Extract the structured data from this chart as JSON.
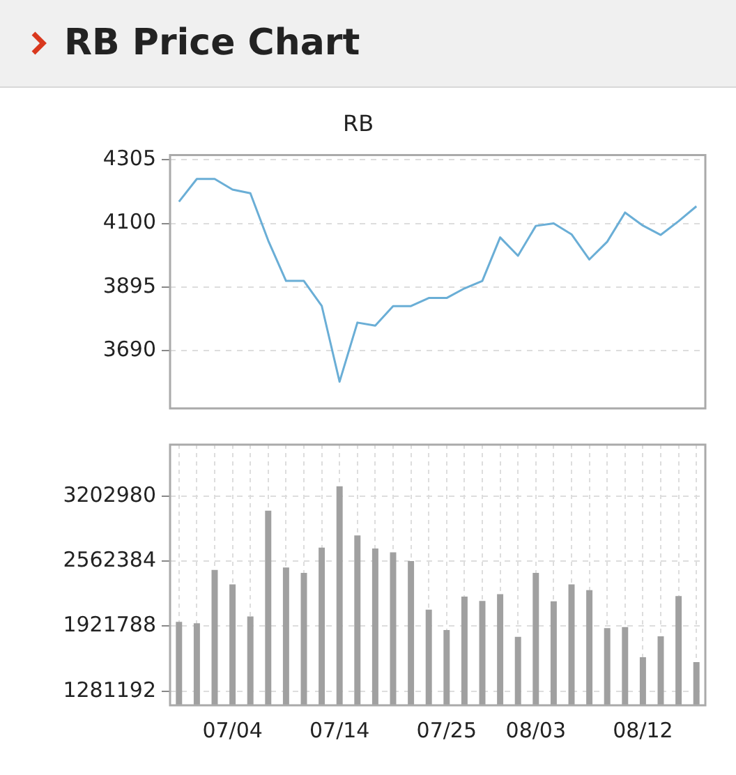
{
  "chart_data": [
    {
      "type": "line",
      "title": "RB Price Chart",
      "subtitle": "RB",
      "categories": [
        null,
        null,
        null,
        null,
        null,
        null,
        null,
        null,
        null,
        null,
        null,
        null,
        null,
        null,
        null,
        null,
        null,
        null,
        null,
        null,
        null,
        null,
        null,
        null,
        null,
        null,
        null,
        null,
        null,
        null
      ],
      "series": [
        {
          "color": "#6aaed6",
          "values": [
            4170,
            4243,
            4243,
            4209,
            4197,
            4045,
            3915,
            3915,
            3835,
            3591,
            3781,
            3771,
            3834,
            3834,
            3860,
            3860,
            3891,
            3915,
            4055,
            3996,
            4092,
            4100,
            4065,
            3984,
            4041,
            4135,
            4093,
            4063,
            4107,
            4155
          ]
        }
      ],
      "ylim": [
        3505,
        4320
      ],
      "yticks": [
        3690,
        3895,
        4100,
        4305
      ],
      "grid": "y",
      "tick_labels": "y"
    },
    {
      "type": "bar",
      "categories": [
        null,
        null,
        null,
        "07/04",
        null,
        null,
        null,
        null,
        null,
        "07/14",
        null,
        null,
        null,
        null,
        null,
        "07/25",
        null,
        null,
        null,
        null,
        "08/03",
        null,
        null,
        null,
        null,
        null,
        "08/12",
        null,
        null,
        null
      ],
      "series": [
        {
          "color": "#a0a0a0",
          "values": [
            1965000,
            1950000,
            2476000,
            2333000,
            2017000,
            3060000,
            2500000,
            2447000,
            2696000,
            3299000,
            2816000,
            2687000,
            2649000,
            2563000,
            2085000,
            1884000,
            2214000,
            2171000,
            2238000,
            1817000,
            2447000,
            2166000,
            2333000,
            2276000,
            1903000,
            1912000,
            1616000,
            1821000,
            2219000,
            1568000
          ]
        }
      ],
      "ylim": [
        1142000,
        3710000
      ],
      "yticks": [
        1281192,
        1921788,
        2562384,
        3202980
      ],
      "grid": true
    }
  ]
}
